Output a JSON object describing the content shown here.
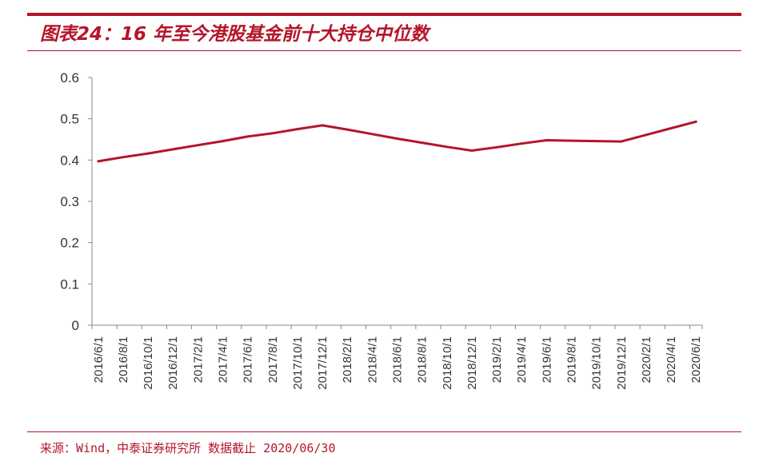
{
  "header": {
    "title": "图表24：16 年至今港股基金前十大持仓中位数"
  },
  "footer": {
    "source": "来源：Wind，中泰证券研究所 数据截止 2020/06/30"
  },
  "colors": {
    "accent": "#b5152a",
    "series": "#b5152a",
    "axis": "#888888",
    "text": "#333333"
  },
  "chart_data": {
    "type": "line",
    "title": "",
    "xlabel": "",
    "ylabel": "",
    "ylim": [
      0,
      0.6
    ],
    "yticks": [
      "0",
      "0.1",
      "0.2",
      "0.3",
      "0.4",
      "0.5",
      "0.6"
    ],
    "grid": false,
    "categories": [
      "2016/6/1",
      "2016/8/1",
      "2016/10/1",
      "2016/12/1",
      "2017/2/1",
      "2017/4/1",
      "2017/6/1",
      "2017/8/1",
      "2017/10/1",
      "2017/12/1",
      "2018/2/1",
      "2018/4/1",
      "2018/6/1",
      "2018/8/1",
      "2018/10/1",
      "2018/12/1",
      "2019/2/1",
      "2019/4/1",
      "2019/6/1",
      "2019/8/1",
      "2019/10/1",
      "2019/12/1",
      "2020/2/1",
      "2020/4/1",
      "2020/6/1"
    ],
    "series": [
      {
        "values": [
          0.397,
          0.407,
          0.416,
          0.426,
          0.436,
          0.446,
          0.457,
          0.465,
          0.475,
          0.484,
          0.474,
          0.463,
          0.452,
          0.442,
          0.432,
          0.423,
          0.431,
          0.44,
          0.448,
          0.447,
          0.446,
          0.445,
          0.461,
          0.477,
          0.493
        ]
      }
    ]
  }
}
